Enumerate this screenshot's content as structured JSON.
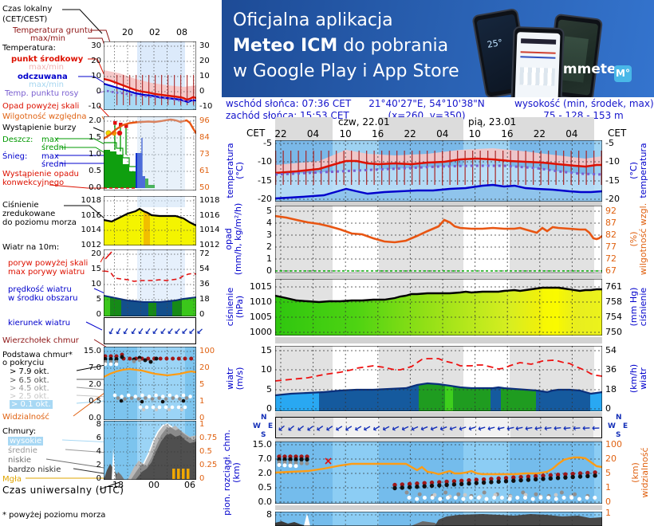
{
  "banner": {
    "line1": "Oficjalna aplikacja",
    "line2_bold": "Meteo ICM",
    "line2_rest": " do pobrania",
    "line3": "w Google Play i App Store",
    "logo": "icmmeteo",
    "badge": "M°",
    "phone_temp": "25°",
    "accent": "#2a62b4"
  },
  "header": {
    "wschod": "wschód słońca: 07:36 CET",
    "zachod": "zachód słońca: 15:53 CET",
    "wspolrzedne": "21°40'27\"E, 54°10'38\"N",
    "siatka": "(x=260,  y=350)",
    "wysokosc_label": "wysokość (min, środek, max)",
    "wysokosc": "75 - 128 - 153 m",
    "dzien_1": "czw, 22.01",
    "dzien_2": "pią, 23.01",
    "cet_l": "CET",
    "cet_r": "CET",
    "godziny": [
      "22",
      "04",
      "10",
      "16",
      "22",
      "04",
      "10",
      "16",
      "22",
      "04"
    ]
  },
  "sidebar": {
    "czas_lokalny_1": "Czas lokalny",
    "czas_lokalny_2": "(CET/CEST)",
    "temperatura_gruntu": "Temperatura gruntu",
    "temperatura_gruntu_2": "max/min",
    "temperatura_h": "Temperatura:",
    "punkt_srodkowy": "punkt środkowy",
    "maxmin_pink": "max/min",
    "odczuwana": "odczuwana",
    "maxmin_blue": "max/min",
    "punkt_rosy": "Temp. punktu rosy",
    "opad_powyzej_skali": "Opad powyżej skali",
    "wilgotnosc_wzgledna": "Wilgotność względna",
    "wystapienie_burzy": "Wystąpienie burzy",
    "deszcz": "Deszcz:",
    "deszcz_max": "max",
    "deszcz_sredni": "średni",
    "snieg": "Śnieg:",
    "snieg_max": "max",
    "snieg_sredni": "średni",
    "opad_konwekcyjny_1": "Wystąpienie opadu",
    "opad_konwekcyjny_2": "konwekcyjnego",
    "cisnienie_1": "Ciśnienie",
    "cisnienie_2": "zredukowane",
    "cisnienie_3": "do poziomu morza",
    "wiatr_10m": "Wiatr na 10m:",
    "poryw_powyzej_skali": "poryw powyżej skali",
    "max_porywy": "max porywy wiatru",
    "predkosc_1": "prędkość wiatru",
    "predkosc_2": "w środku obszaru",
    "kierunek_wiatru": "kierunek wiatru",
    "wierzcholek_chmur": "Wierzchołek chmur",
    "podstawa_1": "Podstawa chmur*",
    "podstawa_2": "o pokryciu",
    "okt_79": "> 7.9 okt.",
    "okt_65": "> 6.5 okt.",
    "okt_45": "> 4.5 okt.",
    "okt_25": "> 2.5 okt.",
    "okt_01": "> 0.1 okt.",
    "widzialnosc": "Widzialność",
    "chmury": "Chmury:",
    "wysokie": "wysokie",
    "srednie": "średnie",
    "niskie": "niskie",
    "bardzo_niskie": "bardzo niskie",
    "mgla": "Mgła",
    "czas_utc": "Czas uniwersalny (UTC)",
    "przypis": "* powyżej poziomu morza"
  },
  "mini": {
    "time_top": [
      "20",
      "02",
      "08"
    ],
    "temp_l": [
      "30",
      "20",
      "10",
      "0",
      "-10"
    ],
    "temp_r": [
      "30",
      "20",
      "10",
      "0",
      "-10"
    ],
    "opad_l": [
      "2.0",
      "1.5",
      "1.0",
      "0.5",
      "0.0"
    ],
    "opad_r": [
      "96",
      "84",
      "73",
      "61",
      "50"
    ],
    "cisn_l": [
      "1018",
      "1016",
      "1014",
      "1012"
    ],
    "cisn_r": [
      "1018",
      "1016",
      "1014",
      "1012"
    ],
    "wiatr_l": [
      "20",
      "15",
      "10",
      "5",
      "0"
    ],
    "wiatr_r": [
      "72",
      "54",
      "36",
      "18",
      "0"
    ],
    "chm_l": [
      "15.0",
      "7.0",
      "2.0",
      "0.5",
      "0.0"
    ],
    "chm_r": [
      "100",
      "20",
      "5",
      "1",
      "0"
    ],
    "pokr_l": [
      "8",
      "6",
      "4",
      "2",
      "0"
    ],
    "pokr_r": [
      "1",
      "0.75",
      "0.5",
      "0.25",
      "0"
    ],
    "time_bottom": [
      "18",
      "00",
      "06"
    ]
  },
  "main": {
    "temp_l": [
      "-5",
      "-10",
      "-15",
      "-20"
    ],
    "temp_r": [
      "-5",
      "-10",
      "-15",
      "-20"
    ],
    "temp_t1": "temperatura",
    "temp_t2": "(°C)",
    "temp_rt1": "(°C)",
    "temp_rt2": "temperatura",
    "opad_l": [
      "5",
      "4",
      "3",
      "2",
      "1",
      "0"
    ],
    "opad_r": [
      "92",
      "87",
      "82",
      "77",
      "72",
      "67"
    ],
    "opad_t1": "opad",
    "opad_t2": "(mm/h, kg/m²/h)",
    "opad_rt1": "(%)",
    "opad_rt2": "wilgotność wzgl.",
    "cisn_l": [
      "1015",
      "1010",
      "1005",
      "1000"
    ],
    "cisn_r": [
      "761",
      "758",
      "754",
      "750"
    ],
    "cisn_t1": "ciśnienie",
    "cisn_t2": "(hPa)",
    "cisn_rt1": "(mm Hg)",
    "cisn_rt2": "ciśnienie",
    "wiatr_l": [
      "15",
      "10",
      "5",
      "0"
    ],
    "wiatr_r": [
      "54",
      "36",
      "18",
      "0"
    ],
    "wiatr_t1": "wiatr",
    "wiatr_t2": "(m/s)",
    "wiatr_rt1": "(km/h)",
    "wiatr_rt2": "wiatr",
    "chm_l": [
      "15.0",
      "7.0",
      "2.0",
      "0.5",
      "0.0"
    ],
    "chm_r": [
      "100",
      "20",
      "5",
      "1",
      "0"
    ],
    "chm_t1": "pion. rozciągł. chm.",
    "chm_t2": "(km)",
    "chm_rt1": "(km)",
    "chm_rt2": "widzialność",
    "pokr_l": "8",
    "pokr_r": "1",
    "compass": {
      "n": "N",
      "e": "E",
      "s": "S",
      "w": "W"
    }
  },
  "chart_data": [
    {
      "panel": "main",
      "id": "temperatura",
      "type": "line",
      "unit": "°C",
      "x_cet": [
        "22",
        "04",
        "10",
        "16",
        "22",
        "04",
        "10",
        "16",
        "22",
        "04"
      ],
      "ylim": [
        -20,
        -5
      ],
      "series": [
        {
          "name": "punkt środkowy",
          "color": "#dd1100",
          "values": [
            -12.8,
            -12.0,
            -9.6,
            -10.4,
            -10.5,
            -10.1,
            -9.1,
            -9.6,
            -10.4,
            -11.0
          ]
        },
        {
          "name": "odczuwana",
          "color": "#0000cc",
          "values": [
            -19.6,
            -18.9,
            -17.5,
            -18.2,
            -17.8,
            -17.4,
            -16.3,
            -16.7,
            -17.6,
            -18.0
          ]
        },
        {
          "name": "temp. punktu rosy",
          "color": "#7a5fd0",
          "values": [
            -13.3,
            -12.6,
            -12.0,
            -11.6,
            -11.3,
            -11.0,
            -11.0,
            -11.5,
            -12.5,
            -13.3
          ]
        }
      ]
    },
    {
      "panel": "main",
      "id": "wilgotność względna",
      "type": "line",
      "unit": "%",
      "ylim": [
        67,
        92
      ],
      "values": [
        88,
        86,
        80,
        83,
        86,
        86,
        85,
        85,
        83,
        79
      ]
    },
    {
      "panel": "main",
      "id": "ciśnienie",
      "type": "area",
      "unit": "hPa",
      "ylim": [
        1000,
        1015
      ],
      "values": [
        1011.4,
        1010.1,
        1010.3,
        1010.9,
        1012.4,
        1012.9,
        1013.3,
        1013.9,
        1014.7,
        1014.1
      ]
    },
    {
      "panel": "main",
      "id": "wiatr",
      "type": "area",
      "unit": "m/s",
      "ylim": [
        0,
        15
      ],
      "series": [
        {
          "name": "prędkość wiatru",
          "values": [
            3.6,
            4.3,
            4.9,
            5.1,
            6.1,
            5.4,
            5.3,
            4.9,
            4.8,
            4.1
          ]
        },
        {
          "name": "max porywy wiatru",
          "values": [
            7.3,
            8.6,
            9.8,
            11.0,
            10.3,
            12.9,
            11.1,
            10.6,
            12.3,
            9.3
          ]
        }
      ]
    },
    {
      "panel": "main",
      "id": "kierunek wiatru",
      "type": "vectors",
      "arrows": "wiatr wschodni, strzałki ku W/SW"
    },
    {
      "panel": "main",
      "id": "pion. rozciągłość chmur / widzialność",
      "type": "scatter+line",
      "ylim_km": [
        0,
        15
      ],
      "widzialnosc_km": [
        6,
        8,
        13,
        13,
        7,
        5,
        4.8,
        4.5,
        6,
        22
      ],
      "podstawa_chmur_km": [
        7.0,
        7.0,
        null,
        0.45,
        0.6,
        0.8,
        1.0,
        1.2,
        1.5,
        1.7
      ],
      "wierzcholek_chmur_km": [
        8.0,
        8.0,
        null,
        0.6,
        0.8,
        1.0,
        1.3,
        1.6,
        1.8,
        2.0
      ]
    },
    {
      "panel": "mini",
      "id": "temperatura",
      "type": "line",
      "x_utc": [
        "18",
        "00",
        "06"
      ],
      "series": [
        {
          "name": "punkt środkowy",
          "values": [
            8,
            0,
            -5
          ]
        },
        {
          "name": "odczuwana",
          "values": [
            5,
            -2,
            -6
          ]
        }
      ]
    },
    {
      "panel": "mini",
      "id": "opad/wilgotność",
      "type": "bar+line",
      "deszcz_mm_h": [
        1.15,
        0.15,
        0
      ],
      "snieg_mm_h": [
        0,
        1.05,
        0
      ],
      "wilgotnosc_pct": [
        84,
        95,
        92
      ]
    },
    {
      "panel": "mini",
      "id": "ciśnienie",
      "type": "area",
      "values": [
        1015.4,
        1016.3,
        1015.2
      ]
    },
    {
      "panel": "mini",
      "id": "wiatr",
      "type": "area",
      "speed_ms": [
        6.3,
        4.3,
        5.9
      ],
      "gusts_ms": [
        13.5,
        10.5,
        12.5
      ]
    },
    {
      "panel": "mini",
      "id": "widzialność",
      "type": "line",
      "values_km": [
        7,
        9,
        8
      ]
    }
  ]
}
